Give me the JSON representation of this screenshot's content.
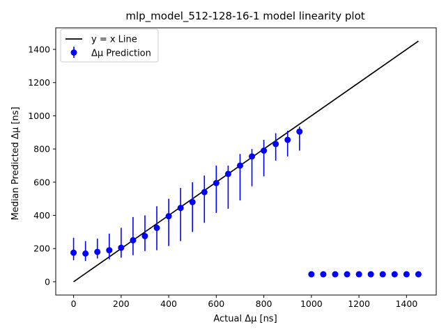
{
  "chart_data": {
    "type": "scatter",
    "title": "mlp_model_512-128-16-1 model linearity plot",
    "xlabel": "Actual Δμ [ns]",
    "ylabel": "Median Predicted Δμ [ns]",
    "xlim": [
      -75,
      1525
    ],
    "ylim": [
      -80,
      1530
    ],
    "xticks": [
      0,
      200,
      400,
      600,
      800,
      1000,
      1200,
      1400
    ],
    "yticks": [
      0,
      200,
      400,
      600,
      800,
      1000,
      1200,
      1400
    ],
    "grid": false,
    "legend_position": "top-left",
    "colors": {
      "points": "#0000ff",
      "line": "#000000"
    },
    "reference_line": {
      "name": "y = x Line",
      "x": [
        0,
        1450
      ],
      "y": [
        0,
        1450
      ]
    },
    "series": [
      {
        "name": "Δμ Prediction",
        "x": [
          0,
          50,
          100,
          150,
          200,
          250,
          300,
          350,
          400,
          450,
          500,
          550,
          600,
          650,
          700,
          750,
          800,
          850,
          900,
          950,
          1000,
          1050,
          1100,
          1150,
          1200,
          1250,
          1300,
          1350,
          1400,
          1450
        ],
        "y": [
          175,
          170,
          180,
          190,
          205,
          250,
          275,
          325,
          395,
          445,
          480,
          540,
          595,
          650,
          700,
          755,
          790,
          830,
          855,
          905,
          45,
          45,
          45,
          45,
          45,
          45,
          45,
          45,
          45,
          45
        ],
        "y_low": [
          130,
          125,
          140,
          135,
          145,
          160,
          185,
          190,
          215,
          245,
          300,
          355,
          415,
          440,
          490,
          575,
          635,
          730,
          755,
          790,
          45,
          45,
          45,
          45,
          45,
          45,
          45,
          45,
          45,
          45
        ],
        "y_high": [
          265,
          245,
          260,
          290,
          325,
          390,
          400,
          455,
          500,
          565,
          600,
          640,
          700,
          700,
          770,
          800,
          855,
          895,
          910,
          935,
          45,
          45,
          45,
          45,
          45,
          45,
          45,
          45,
          45,
          45
        ]
      }
    ]
  }
}
